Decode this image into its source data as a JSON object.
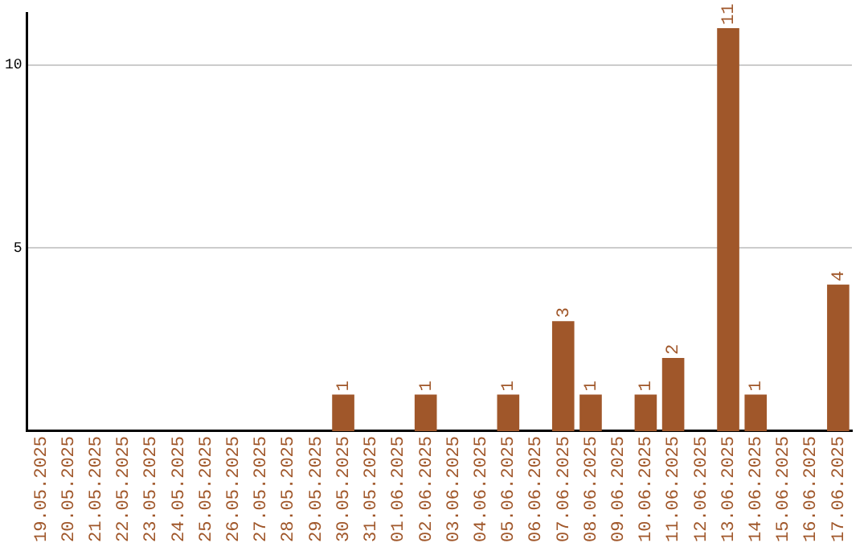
{
  "chart_data": {
    "type": "bar",
    "categories": [
      "19.05.2025",
      "20.05.2025",
      "21.05.2025",
      "22.05.2025",
      "23.05.2025",
      "24.05.2025",
      "25.05.2025",
      "26.05.2025",
      "27.05.2025",
      "28.05.2025",
      "29.05.2025",
      "30.05.2025",
      "31.05.2025",
      "01.06.2025",
      "02.06.2025",
      "03.06.2025",
      "04.06.2025",
      "05.06.2025",
      "06.06.2025",
      "07.06.2025",
      "08.06.2025",
      "09.06.2025",
      "10.06.2025",
      "11.06.2025",
      "12.06.2025",
      "13.06.2025",
      "14.06.2025",
      "15.06.2025",
      "16.06.2025",
      "17.06.2025"
    ],
    "values": [
      0,
      0,
      0,
      0,
      0,
      0,
      0,
      0,
      0,
      0,
      0,
      1,
      0,
      0,
      1,
      0,
      0,
      1,
      0,
      3,
      1,
      0,
      1,
      2,
      0,
      11,
      1,
      0,
      0,
      4
    ],
    "value_labels": [
      null,
      null,
      null,
      null,
      null,
      null,
      null,
      null,
      null,
      null,
      null,
      "1",
      null,
      null,
      "1",
      null,
      null,
      "1",
      null,
      "3",
      "1",
      null,
      "1",
      "2",
      null,
      "11",
      "1",
      null,
      null,
      "4"
    ],
    "color": "#a0572a",
    "ylim": [
      0,
      11.4
    ],
    "yticks": [
      5,
      10
    ],
    "grid": "y",
    "legend": false
  }
}
